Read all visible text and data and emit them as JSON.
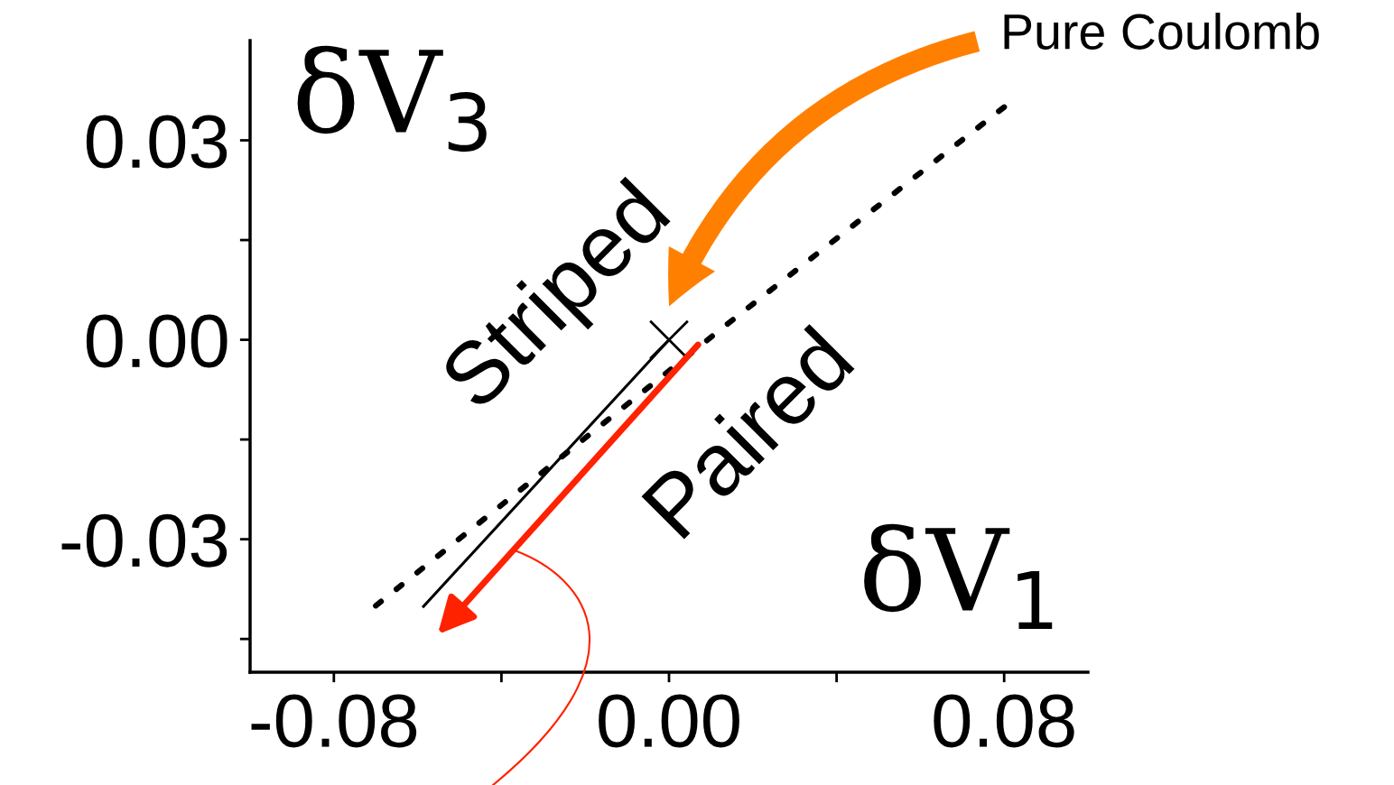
{
  "chart_data": {
    "type": "line",
    "xlabel": "δV$_{1}$",
    "ylabel": "δV$_{3}$",
    "xlim": [
      -0.1,
      0.1
    ],
    "ylim": [
      -0.05,
      0.045
    ],
    "xticks": [
      {
        "value": -0.08,
        "label": "-0.08"
      },
      {
        "value": -0.04,
        "label": null
      },
      {
        "value": 0.0,
        "label": "0.00"
      },
      {
        "value": 0.04,
        "label": null
      },
      {
        "value": 0.08,
        "label": "0.08"
      }
    ],
    "yticks": [
      {
        "value": -0.045,
        "label": null
      },
      {
        "value": -0.03,
        "label": "-0.03"
      },
      {
        "value": -0.015,
        "label": null
      },
      {
        "value": 0.0,
        "label": "0.00"
      },
      {
        "value": 0.015,
        "label": null
      },
      {
        "value": 0.03,
        "label": "0.03"
      }
    ],
    "grid": false,
    "legend": false,
    "series": [
      {
        "color": "#000000",
        "line_style": "dotted",
        "x": [
          -0.07,
          0.014,
          0.08
        ],
        "values": [
          -0.04,
          0.0024,
          0.035
        ]
      },
      {
        "color": "#000000",
        "line_style": "solid",
        "x": [
          -0.0586,
          0.0
        ],
        "values": [
          -0.0401,
          0.0
        ]
      },
      {
        "type": "scatter",
        "color": "#000000",
        "marker": "cross",
        "x": [
          0.0
        ],
        "values": [
          0.0
        ]
      }
    ],
    "annotations": [
      "Pure Coulomb",
      "Striped",
      "Paired"
    ]
  }
}
